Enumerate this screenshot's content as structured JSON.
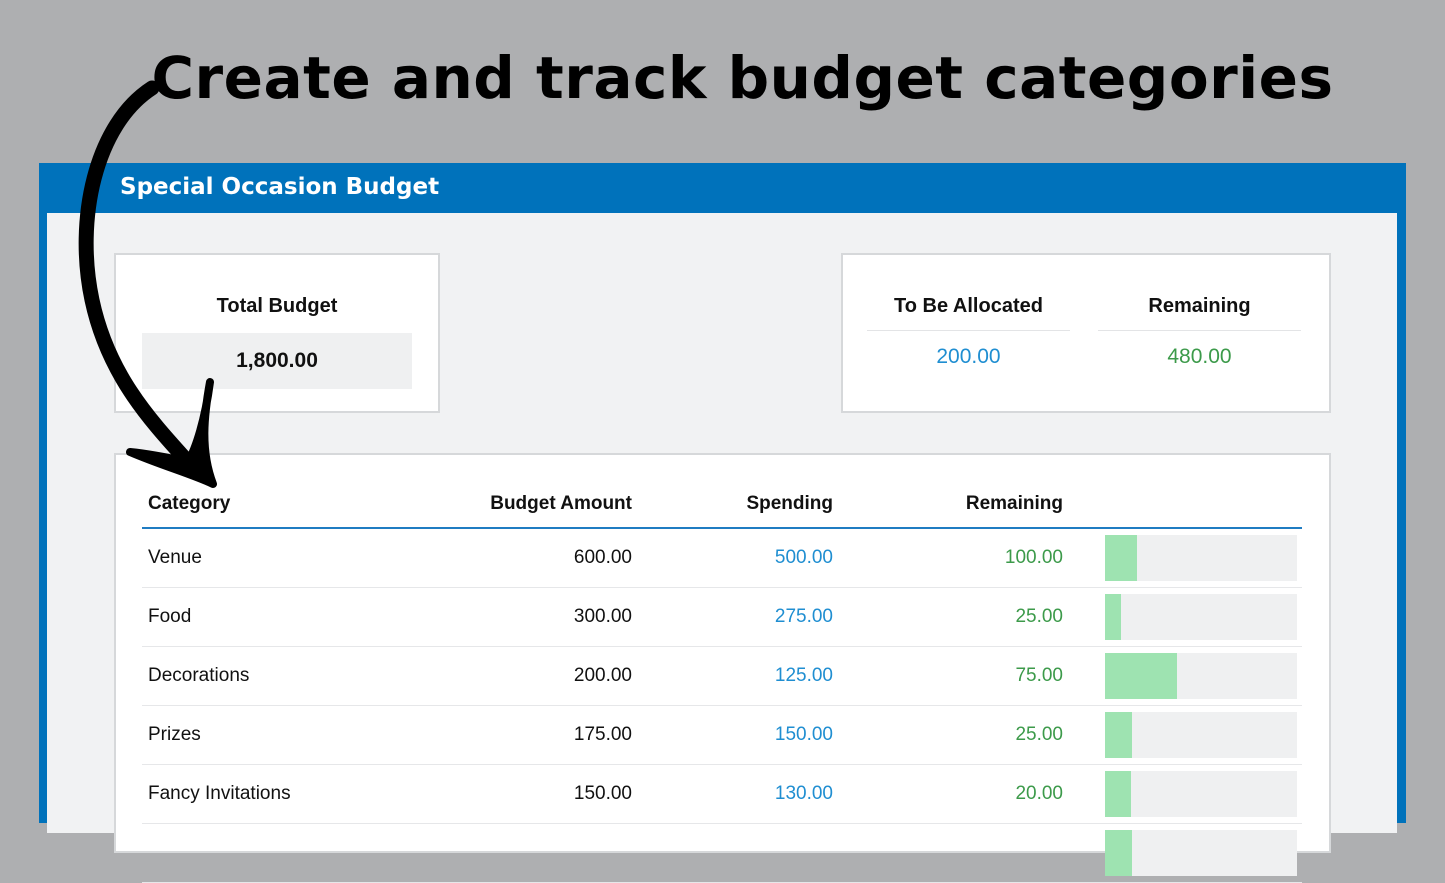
{
  "headline": "Create and track budget categories",
  "window": {
    "title": "Special Occasion Budget"
  },
  "summary": {
    "total_budget_label": "Total Budget",
    "total_budget_value": "1,800.00",
    "to_be_allocated_label": "To Be Allocated",
    "to_be_allocated_value": "200.00",
    "remaining_label": "Remaining",
    "remaining_value": "480.00"
  },
  "table": {
    "columns": [
      "Category",
      "Budget Amount",
      "Spending",
      "Remaining"
    ],
    "rows": [
      {
        "category": "Venue",
        "budget": "600.00",
        "spending": "500.00",
        "remaining": "100.00",
        "remaining_fraction": 0.167
      },
      {
        "category": "Food",
        "budget": "300.00",
        "spending": "275.00",
        "remaining": "25.00",
        "remaining_fraction": 0.083
      },
      {
        "category": "Decorations",
        "budget": "200.00",
        "spending": "125.00",
        "remaining": "75.00",
        "remaining_fraction": 0.375
      },
      {
        "category": "Prizes",
        "budget": "175.00",
        "spending": "150.00",
        "remaining": "25.00",
        "remaining_fraction": 0.143
      },
      {
        "category": "Fancy Invitations",
        "budget": "150.00",
        "spending": "130.00",
        "remaining": "20.00",
        "remaining_fraction": 0.133
      }
    ]
  },
  "colors": {
    "window_blue": "#0072bb",
    "spending_blue": "#1f8ed1",
    "remaining_green": "#3c9a4a",
    "bar_green": "#9ee3b1",
    "background_gray": "#aeafb1"
  }
}
